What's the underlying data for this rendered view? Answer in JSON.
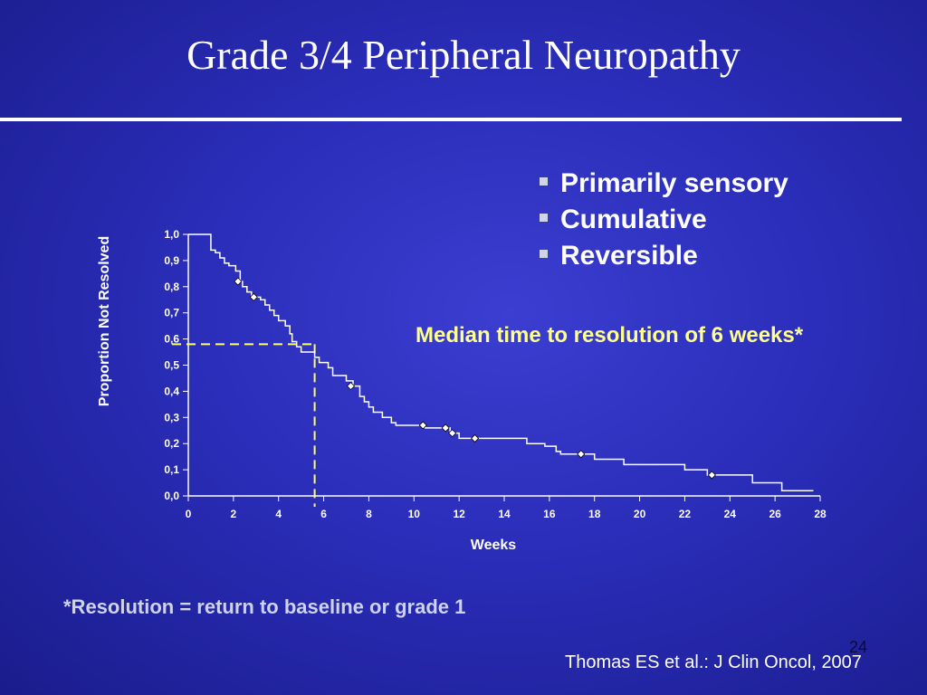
{
  "slide": {
    "title": "Grade 3/4 Peripheral Neuropathy",
    "bullets": [
      "Primarily sensory",
      "Cumulative",
      "Reversible"
    ],
    "median_note": "Median time to resolution of 6 weeks*",
    "footnote": "*Resolution = return to baseline or grade 1",
    "slide_number": "24",
    "citation": "Thomas ES et al.: J Clin Oncol, 2007"
  },
  "colors": {
    "background": "#2a2db8",
    "highlight": "#ffff8c",
    "median_line": "#ffff66"
  },
  "chart_data": {
    "type": "line",
    "xlabel": "Weeks",
    "ylabel": "Proportion Not Resolved",
    "xlim": [
      0,
      28
    ],
    "ylim": [
      0,
      1
    ],
    "x_ticks": [
      "0",
      "2",
      "4",
      "6",
      "8",
      "10",
      "12",
      "14",
      "16",
      "18",
      "20",
      "22",
      "24",
      "26",
      "28"
    ],
    "y_ticks": [
      "0,0",
      "0,1",
      "0,2",
      "0,3",
      "0,4",
      "0,5",
      "0,6",
      "0,7",
      "0,8",
      "0,9",
      "1,0"
    ],
    "step_curve": [
      [
        0,
        1.0
      ],
      [
        1.0,
        1.0
      ],
      [
        1.0,
        0.94
      ],
      [
        1.2,
        0.93
      ],
      [
        1.4,
        0.91
      ],
      [
        1.6,
        0.89
      ],
      [
        1.8,
        0.88
      ],
      [
        2.1,
        0.86
      ],
      [
        2.3,
        0.82
      ],
      [
        2.4,
        0.8
      ],
      [
        2.6,
        0.78
      ],
      [
        2.8,
        0.76
      ],
      [
        3.2,
        0.75
      ],
      [
        3.4,
        0.73
      ],
      [
        3.6,
        0.71
      ],
      [
        3.8,
        0.69
      ],
      [
        4.0,
        0.67
      ],
      [
        4.3,
        0.65
      ],
      [
        4.5,
        0.62
      ],
      [
        4.6,
        0.59
      ],
      [
        4.8,
        0.57
      ],
      [
        5.0,
        0.55
      ],
      [
        5.4,
        0.55
      ],
      [
        5.6,
        0.53
      ],
      [
        5.8,
        0.51
      ],
      [
        6.2,
        0.49
      ],
      [
        6.4,
        0.46
      ],
      [
        7.0,
        0.44
      ],
      [
        7.3,
        0.42
      ],
      [
        7.6,
        0.38
      ],
      [
        7.8,
        0.36
      ],
      [
        8.0,
        0.34
      ],
      [
        8.2,
        0.32
      ],
      [
        8.6,
        0.3
      ],
      [
        9.0,
        0.28
      ],
      [
        9.2,
        0.27
      ],
      [
        10.5,
        0.26
      ],
      [
        11.6,
        0.24
      ],
      [
        12.0,
        0.22
      ],
      [
        15.0,
        0.2
      ],
      [
        15.8,
        0.19
      ],
      [
        16.3,
        0.17
      ],
      [
        16.5,
        0.16
      ],
      [
        18.0,
        0.14
      ],
      [
        19.3,
        0.12
      ],
      [
        22.0,
        0.1
      ],
      [
        23.0,
        0.08
      ],
      [
        25.0,
        0.05
      ],
      [
        26.3,
        0.02
      ],
      [
        27.7,
        0.02
      ]
    ],
    "censored_points": [
      [
        2.2,
        0.82
      ],
      [
        2.9,
        0.76
      ],
      [
        7.2,
        0.42
      ],
      [
        10.4,
        0.27
      ],
      [
        11.4,
        0.26
      ],
      [
        11.7,
        0.24
      ],
      [
        12.7,
        0.22
      ],
      [
        17.4,
        0.16
      ],
      [
        23.2,
        0.08
      ]
    ],
    "median_guide": {
      "x": 5.6,
      "y": 0.58
    }
  }
}
